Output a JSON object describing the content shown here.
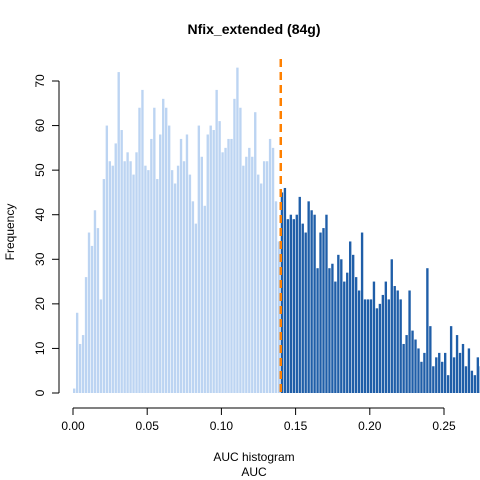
{
  "chart_data": {
    "type": "bar",
    "title": "Nfix_extended (84g)",
    "xlabel": "AUC histogram",
    "xlabel2": "AUC",
    "ylabel": "Frequency",
    "xlim": [
      0.0,
      0.25
    ],
    "ylim": [
      0,
      70
    ],
    "x_ticks": [
      "0.00",
      "0.05",
      "0.10",
      "0.15",
      "0.20",
      "0.25"
    ],
    "y_ticks": [
      "0",
      "10",
      "20",
      "30",
      "40",
      "50",
      "60",
      "70"
    ],
    "bin_width": 0.002,
    "bin_start": 0.0,
    "threshold": 0.14,
    "colors": {
      "below_threshold": "#bcd4f2",
      "above_threshold": "#1f5ea8",
      "threshold_line": "#ff8000"
    },
    "values": [
      1,
      18,
      11,
      13,
      26,
      36,
      33,
      41,
      37,
      21,
      48,
      60,
      52,
      51,
      56,
      72,
      59,
      52,
      54,
      52,
      49,
      54,
      64,
      68,
      51,
      50,
      57,
      64,
      48,
      58,
      66,
      64,
      60,
      50,
      47,
      51,
      57,
      52,
      58,
      49,
      43,
      38,
      60,
      53,
      42,
      58,
      60,
      59,
      68,
      61,
      54,
      55,
      57,
      57,
      66,
      73,
      64,
      51,
      53,
      55,
      53,
      63,
      49,
      47,
      52,
      52,
      57,
      55,
      43,
      34,
      45,
      46,
      39,
      40,
      39,
      40,
      44,
      38,
      36,
      43,
      41,
      40,
      28,
      36,
      37,
      40,
      28,
      29,
      25,
      31,
      30,
      25,
      27,
      34,
      31,
      26,
      23,
      36,
      21,
      21,
      21,
      25,
      19,
      20,
      22,
      25,
      21,
      30,
      24,
      23,
      21,
      11,
      13,
      23,
      14,
      12,
      10,
      7,
      9,
      28,
      15,
      6,
      8,
      9,
      7,
      9,
      4,
      15,
      8,
      13,
      9,
      11,
      6,
      10,
      5,
      4,
      8,
      6,
      6,
      8,
      5,
      3,
      4,
      2,
      3,
      3,
      3,
      2,
      1,
      4,
      3,
      0,
      0,
      2,
      0,
      0,
      0,
      0,
      0,
      0,
      1,
      0,
      0,
      0,
      0,
      0,
      0,
      0,
      0,
      0,
      1,
      0,
      2,
      0,
      0,
      0,
      0,
      0,
      0,
      0,
      0,
      0,
      0,
      0,
      0,
      0,
      0,
      0,
      0,
      0,
      0,
      0,
      0,
      0,
      0,
      0,
      0,
      0,
      0,
      0,
      0,
      0,
      0,
      0,
      0,
      0,
      0,
      0,
      0,
      0,
      0,
      0,
      0,
      0,
      0,
      0,
      0,
      0,
      0,
      0,
      0,
      0,
      0,
      0,
      0,
      0,
      0,
      0,
      0,
      0,
      0,
      2
    ]
  }
}
